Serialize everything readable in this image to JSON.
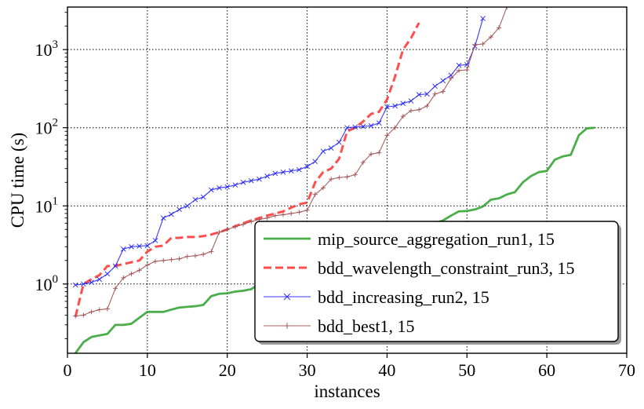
{
  "chart_data": {
    "type": "line",
    "xlabel": "instances",
    "ylabel": "CPU time (s)",
    "xlim": [
      0,
      70
    ],
    "ylim_log": [
      0.13,
      3500
    ],
    "yscale": "log",
    "grid": true,
    "legend_position": "lower-right",
    "x_ticks": [
      0,
      10,
      20,
      30,
      40,
      50,
      60,
      70
    ],
    "y_ticks": [
      1,
      10,
      100,
      1000
    ],
    "x_tick_labels": [
      "0",
      "10",
      "20",
      "30",
      "40",
      "50",
      "60",
      "70"
    ],
    "y_tick_labels": [
      {
        "base": "10",
        "exp": "0"
      },
      {
        "base": "10",
        "exp": "1"
      },
      {
        "base": "10",
        "exp": "2"
      },
      {
        "base": "10",
        "exp": "3"
      }
    ],
    "series": [
      {
        "name": "mip_source_aggregation_run1, 15",
        "color": "#2ca02c",
        "style": "solid",
        "marker": "none",
        "x": [
          1,
          2,
          3,
          4,
          5,
          6,
          7,
          8,
          9,
          10,
          11,
          12,
          13,
          14,
          15,
          16,
          17,
          18,
          19,
          20,
          21,
          22,
          23,
          24,
          25,
          26,
          27,
          28,
          29,
          30,
          31,
          32,
          33,
          34,
          35,
          36,
          37,
          38,
          39,
          40,
          41,
          42,
          43,
          44,
          45,
          46,
          47,
          48,
          49,
          50,
          51,
          52,
          53,
          54,
          55,
          56,
          57,
          58,
          59,
          60,
          61,
          62,
          63,
          64,
          65,
          66
        ],
        "y": [
          0.13,
          0.18,
          0.21,
          0.22,
          0.23,
          0.3,
          0.3,
          0.31,
          0.37,
          0.44,
          0.44,
          0.44,
          0.47,
          0.5,
          0.51,
          0.52,
          0.54,
          0.7,
          0.75,
          0.76,
          0.8,
          0.82,
          0.86,
          1.0,
          1.1,
          1.2,
          1.3,
          1.4,
          1.5,
          1.6,
          1.8,
          2.0,
          2.2,
          2.4,
          2.6,
          2.8,
          3.0,
          3.2,
          3.5,
          3.8,
          4.1,
          4.4,
          4.7,
          5.0,
          5.5,
          6.0,
          6.5,
          7.5,
          8.5,
          8.6,
          9.0,
          9.8,
          12.0,
          12.5,
          14.0,
          15.0,
          20.0,
          24.0,
          27.0,
          28.0,
          39.0,
          43.0,
          45.0,
          80.0,
          98.0,
          100.0
        ]
      },
      {
        "name": "bdd_wavelength_constraint_run3, 15",
        "color": "#ff3b3b",
        "style": "dashed",
        "marker": "none",
        "x": [
          1,
          2,
          3,
          4,
          5,
          6,
          7,
          8,
          9,
          10,
          11,
          12,
          13,
          14,
          15,
          16,
          17,
          18,
          19,
          20,
          21,
          22,
          23,
          24,
          25,
          26,
          27,
          28,
          29,
          30,
          31,
          32,
          33,
          34,
          35,
          36,
          37,
          38,
          39,
          40,
          41,
          42,
          43,
          44
        ],
        "y": [
          0.38,
          1.0,
          1.15,
          1.3,
          1.7,
          1.7,
          1.8,
          1.9,
          2.0,
          2.6,
          3.0,
          3.1,
          3.9,
          3.9,
          4.0,
          4.0,
          4.1,
          4.3,
          4.6,
          5.0,
          5.5,
          6.0,
          6.5,
          7.0,
          7.5,
          8.0,
          8.5,
          9.5,
          10.5,
          11.0,
          20.0,
          27.0,
          30.0,
          40.0,
          90.0,
          100.0,
          120.0,
          150.0,
          160.0,
          230.0,
          450.0,
          1000.0,
          1400.0,
          2200.0
        ]
      },
      {
        "name": "bdd_increasing_run2, 15",
        "color": "#2323ff",
        "style": "solid",
        "marker": "x",
        "x": [
          1,
          2,
          3,
          4,
          5,
          6,
          7,
          8,
          9,
          10,
          11,
          12,
          13,
          14,
          15,
          16,
          17,
          18,
          19,
          20,
          21,
          22,
          23,
          24,
          25,
          26,
          27,
          28,
          29,
          30,
          31,
          32,
          33,
          34,
          35,
          36,
          37,
          38,
          39,
          40,
          41,
          42,
          43,
          44,
          45,
          46,
          47,
          48,
          49,
          50,
          51,
          52
        ],
        "y": [
          0.97,
          1.0,
          1.05,
          1.15,
          1.35,
          1.7,
          2.8,
          3.0,
          3.05,
          3.1,
          3.6,
          7.0,
          7.8,
          9.0,
          10.0,
          12.0,
          13.0,
          16.0,
          17.0,
          17.5,
          18.5,
          20.0,
          21.0,
          22.0,
          24.0,
          26.0,
          27.0,
          28.0,
          29.0,
          32.0,
          37.0,
          50.0,
          55.0,
          65.0,
          100.0,
          102.0,
          104.0,
          106.0,
          115.0,
          185.0,
          190.0,
          205.0,
          220.0,
          265.0,
          270.0,
          340.0,
          400.0,
          470.0,
          630.0,
          640.0,
          1100.0,
          2500.0
        ]
      },
      {
        "name": "bdd_best1, 15",
        "color": "#a05050",
        "style": "solid",
        "marker": "+",
        "x": [
          1,
          2,
          3,
          4,
          5,
          6,
          7,
          8,
          9,
          10,
          11,
          12,
          13,
          14,
          15,
          16,
          17,
          18,
          19,
          20,
          21,
          22,
          23,
          24,
          25,
          26,
          27,
          28,
          29,
          30,
          31,
          32,
          33,
          34,
          35,
          36,
          37,
          38,
          39,
          40,
          41,
          42,
          43,
          44,
          45,
          46,
          47,
          48,
          49,
          50,
          51,
          52,
          53,
          54,
          55
        ],
        "y": [
          0.39,
          0.4,
          0.44,
          0.47,
          0.48,
          0.88,
          1.2,
          1.35,
          1.5,
          1.75,
          1.95,
          2.0,
          2.05,
          2.1,
          2.25,
          2.3,
          2.4,
          2.6,
          4.6,
          5.0,
          5.4,
          5.8,
          6.3,
          6.7,
          7.0,
          7.5,
          7.7,
          8.0,
          8.3,
          8.8,
          14.0,
          17.0,
          22.0,
          23.0,
          23.5,
          25.0,
          36.0,
          46.0,
          48.0,
          80.0,
          100.0,
          140.0,
          165.0,
          170.0,
          190.0,
          270.0,
          290.0,
          430.0,
          540.0,
          550.0,
          1150.0,
          1180.0,
          1450.0,
          1900.0,
          3500.0
        ]
      }
    ]
  }
}
